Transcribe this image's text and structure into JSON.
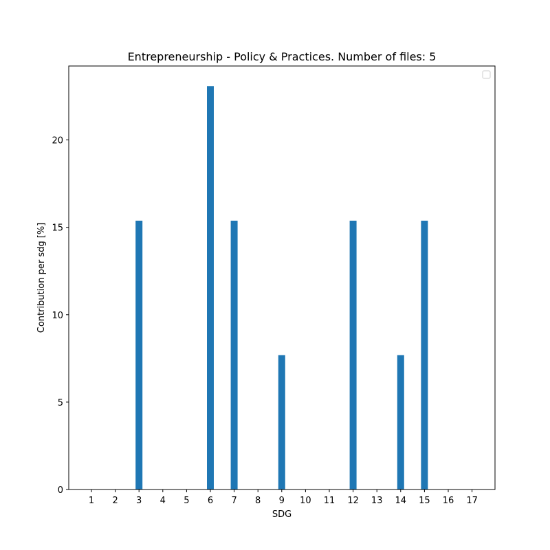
{
  "chart_data": {
    "type": "bar",
    "title": "Entrepreneurship - Policy & Practices. Number of files: 5",
    "xlabel": "SDG",
    "ylabel": "Contribution per sdg [%]",
    "categories": [
      "1",
      "2",
      "3",
      "4",
      "5",
      "6",
      "7",
      "8",
      "9",
      "10",
      "11",
      "12",
      "13",
      "14",
      "15",
      "16",
      "17"
    ],
    "values": [
      0,
      0,
      15.38,
      0,
      0,
      23.08,
      15.38,
      0,
      7.69,
      0,
      0,
      15.38,
      0,
      7.69,
      15.38,
      0,
      0
    ],
    "ylim": [
      0,
      24.23
    ],
    "yticks": [
      0,
      5,
      10,
      15,
      20
    ],
    "ytick_labels": [
      "0",
      "5",
      "10",
      "15",
      "20"
    ],
    "bar_color": "#1f77b4",
    "grid": false,
    "legend": {
      "placement": "top-right",
      "entries": []
    }
  }
}
